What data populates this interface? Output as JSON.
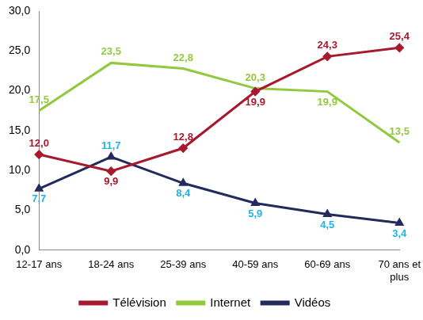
{
  "chart_data": {
    "type": "line",
    "categories": [
      "12-17 ans",
      "18-24 ans",
      "25-39 ans",
      "40-59 ans",
      "60-69 ans",
      "70 ans et plus"
    ],
    "series": [
      {
        "name": "Télévision",
        "color": "#a6192e",
        "marker": "diamond",
        "values": [
          12.0,
          9.9,
          12.8,
          19.9,
          24.3,
          25.4
        ],
        "value_labels": [
          "12,0",
          "9,9",
          "12,8",
          "19,9",
          "24,3",
          "25,4"
        ]
      },
      {
        "name": "Internet",
        "color": "#92c83e",
        "marker": "none",
        "values": [
          17.5,
          23.5,
          22.8,
          20.3,
          19.9,
          13.5
        ],
        "value_labels": [
          "17,5",
          "23,5",
          "22,8",
          "20,3",
          "19,9",
          "13,5"
        ]
      },
      {
        "name": "Vidéos",
        "color": "#232a5c",
        "marker": "triangle",
        "values": [
          7.7,
          11.7,
          8.4,
          5.9,
          4.5,
          3.4
        ],
        "value_labels": [
          "7,7",
          "11,7",
          "8,4",
          "5,9",
          "4,5",
          "3,4"
        ]
      }
    ],
    "ylim": [
      0,
      30
    ],
    "yticks": [
      {
        "value": 0,
        "label": "0,0"
      },
      {
        "value": 5,
        "label": "5,0"
      },
      {
        "value": 10,
        "label": "10,0"
      },
      {
        "value": 15,
        "label": "15,0"
      },
      {
        "value": 20,
        "label": "20,0"
      },
      {
        "value": 25,
        "label": "25,0"
      },
      {
        "value": 30,
        "label": "30,0"
      }
    ],
    "grid": false,
    "legend": "bottom",
    "data_labels": true
  }
}
